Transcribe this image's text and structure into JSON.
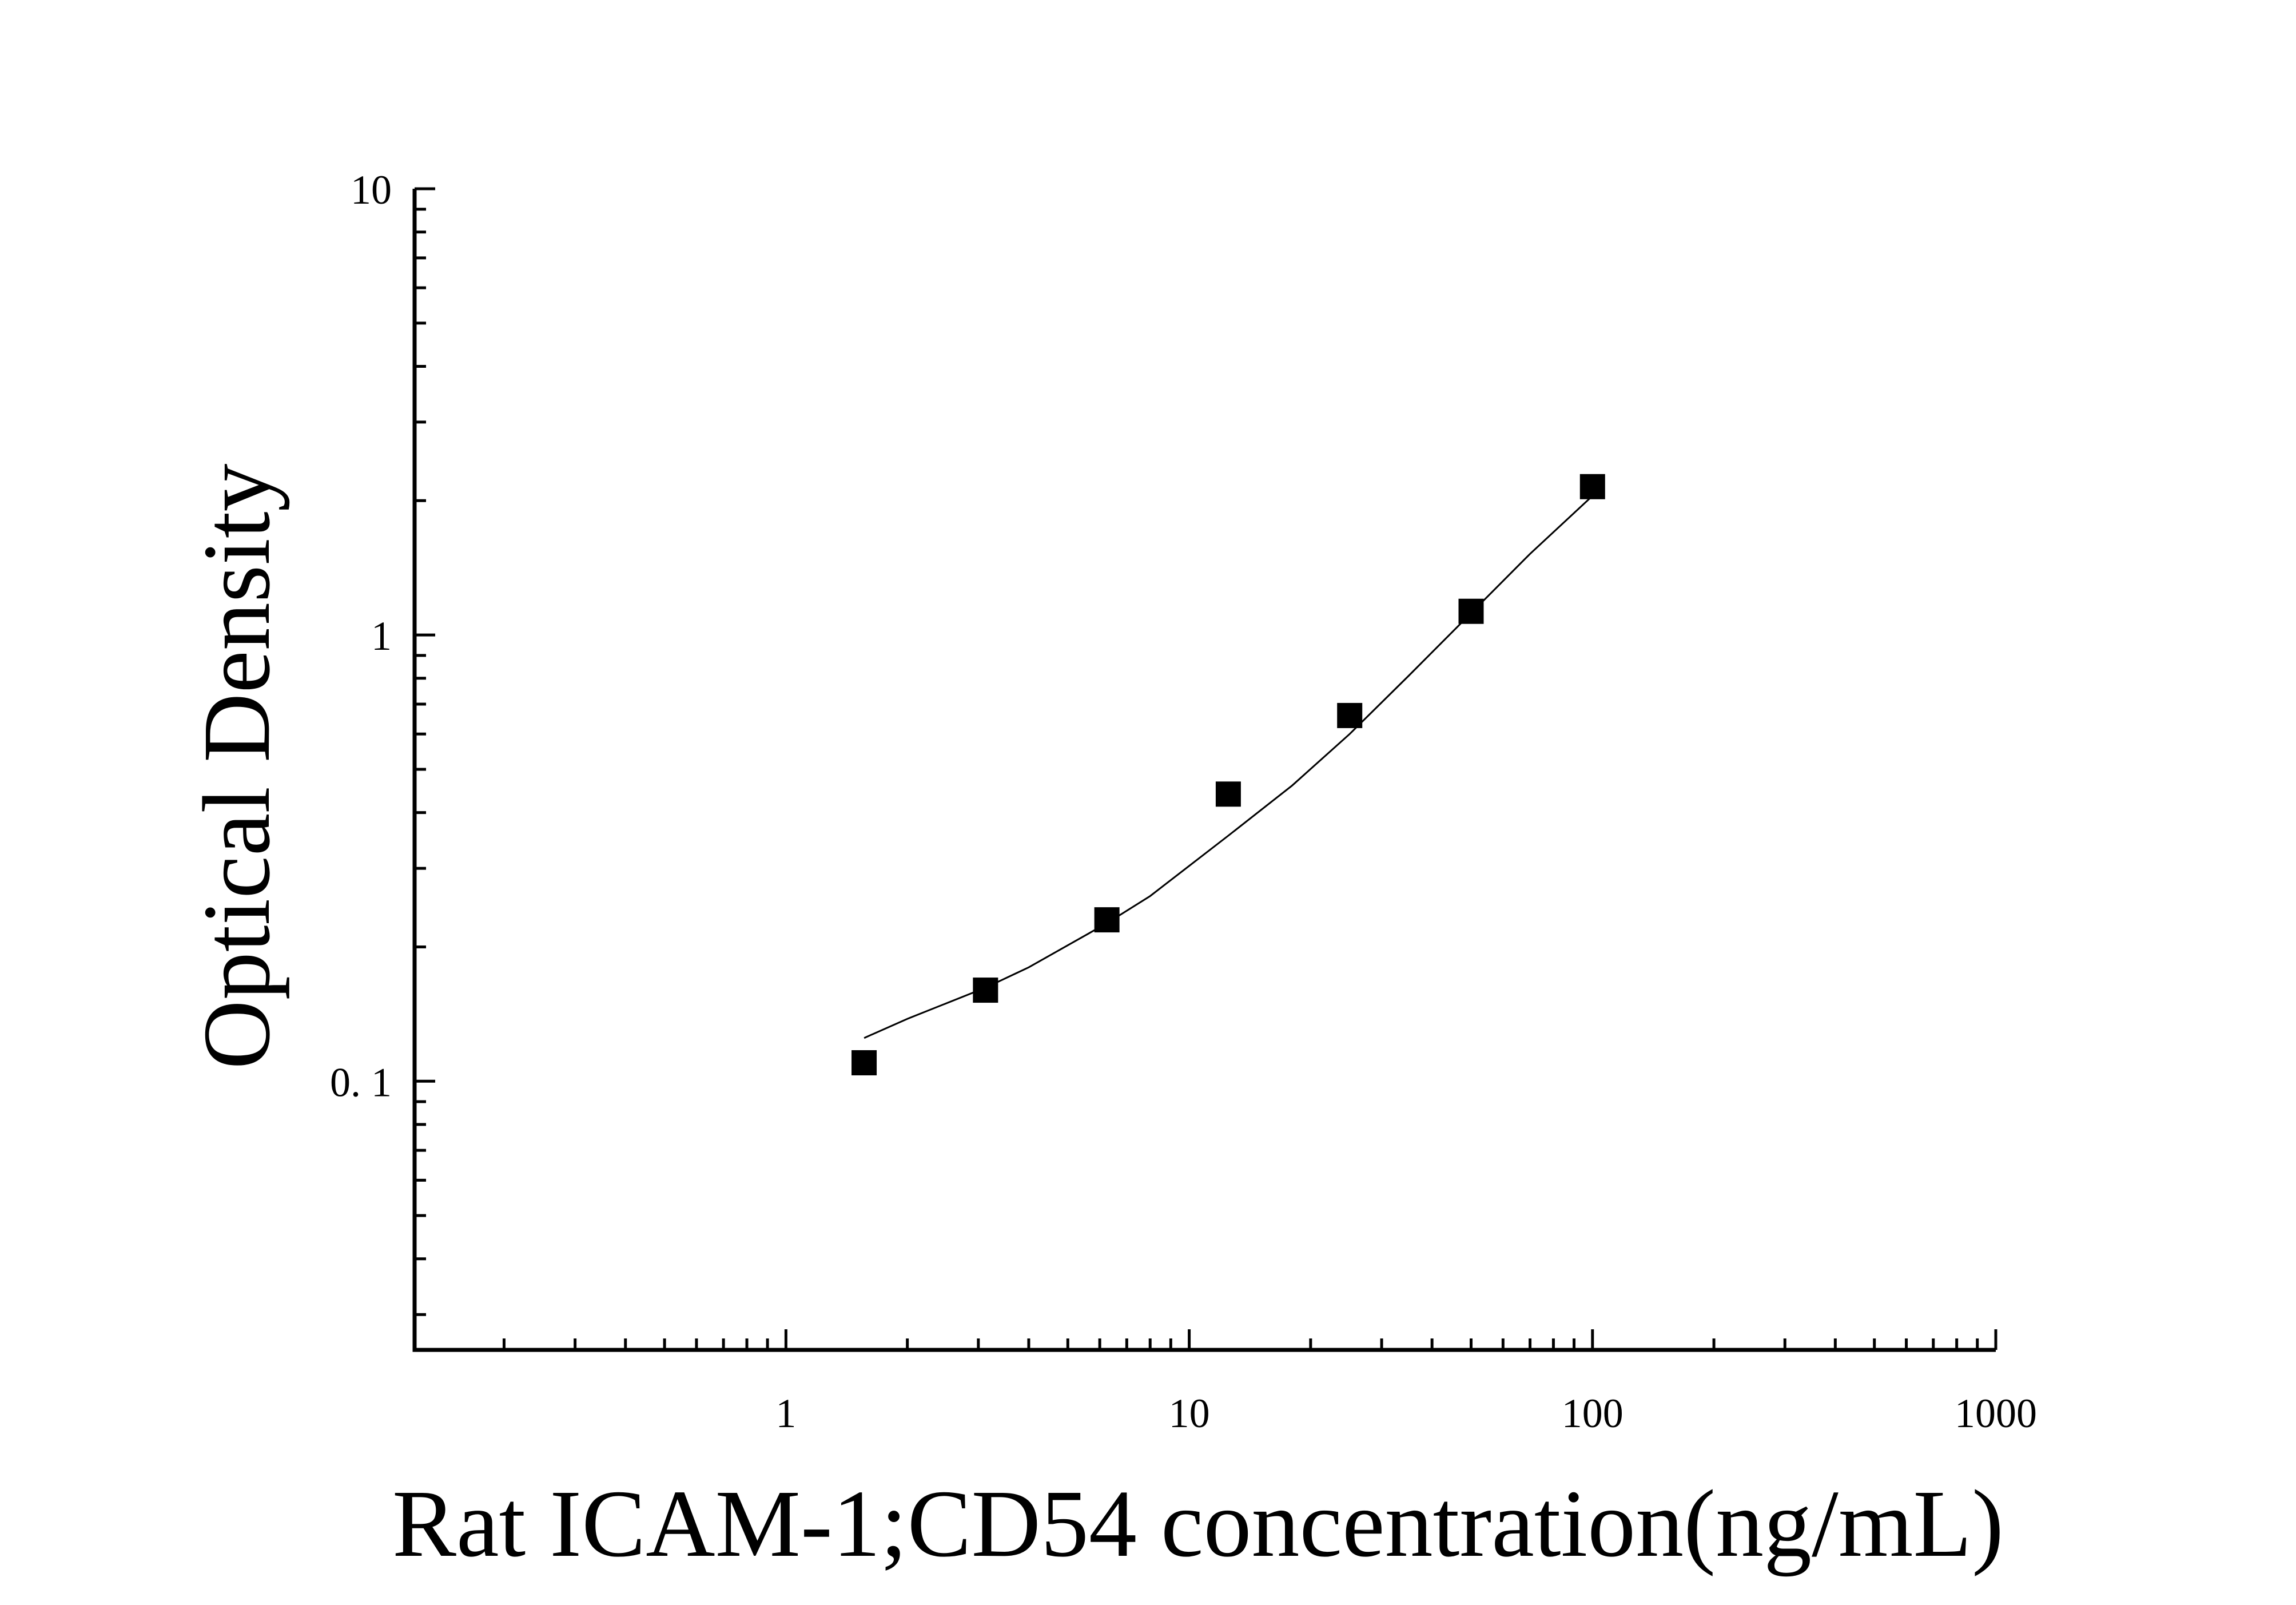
{
  "chart_data": {
    "type": "scatter",
    "title": "",
    "xlabel": "Rat ICAM-1;CD54 concentration(ng/mL)",
    "ylabel": "Optical Density",
    "x_scale": "log",
    "y_scale": "log",
    "xlim": [
      0.12,
      1000
    ],
    "ylim": [
      0.025,
      10
    ],
    "x_ticks": [
      {
        "value": 1,
        "label": "1"
      },
      {
        "value": 10,
        "label": "10"
      },
      {
        "value": 100,
        "label": "100"
      },
      {
        "value": 1000,
        "label": "1000"
      }
    ],
    "y_ticks": [
      {
        "value": 0.1,
        "label": "0. 1"
      },
      {
        "value": 1,
        "label": "1"
      },
      {
        "value": 10,
        "label": "10"
      }
    ],
    "grid": false,
    "series": [
      {
        "marker": "square",
        "color": "#000000",
        "x": [
          1.5625,
          3.125,
          6.25,
          12.5,
          25,
          50,
          100
        ],
        "y": [
          0.11,
          0.16,
          0.23,
          0.44,
          0.66,
          1.13,
          2.15
        ]
      }
    ],
    "fit_curve": {
      "color": "#000000",
      "x": [
        1.5625,
        2.0,
        3.125,
        4.0,
        6.25,
        8.0,
        12.5,
        18.0,
        25,
        35,
        50,
        70,
        100
      ],
      "y": [
        0.125,
        0.138,
        0.162,
        0.18,
        0.226,
        0.26,
        0.355,
        0.46,
        0.6,
        0.81,
        1.12,
        1.52,
        2.05
      ]
    }
  }
}
